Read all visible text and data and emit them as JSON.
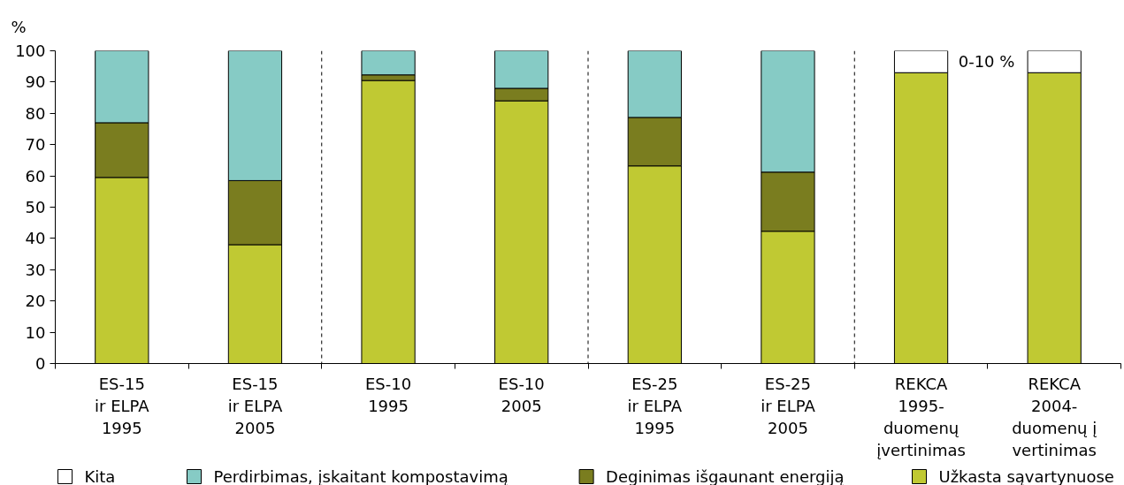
{
  "chart_data": {
    "type": "bar",
    "stacked": true,
    "ylabel": "%",
    "categories": [
      "ES-15\nir ELPA\n1995",
      "ES-15\nir ELPA\n2005",
      "ES-10\n1995",
      "ES-10\n2005",
      "ES-25\nir ELPA\n1995",
      "ES-25\nir ELPA\n2005",
      "REKCA\n1995-\nduomenų\nįvertinimas",
      "REKCA\n2004-\nduomenų į\nvertinimas"
    ],
    "series": [
      {
        "name": "Užkasta sąvartynuose",
        "color": "#c0c933",
        "values": [
          59.5,
          38,
          90.5,
          84,
          63.2,
          42.3,
          93,
          93
        ]
      },
      {
        "name": "Deginimas išgaunant energiją",
        "color": "#7a7d1f",
        "values": [
          17.5,
          20.5,
          1.8,
          4,
          15.5,
          18.9,
          null,
          null
        ]
      },
      {
        "name": "Perdirbimas, įskaitant kompostavimą",
        "color": "#86cbc5",
        "values": [
          23,
          41.5,
          7.7,
          12,
          21.3,
          38.8,
          null,
          null
        ]
      },
      {
        "name": "Kita",
        "color": "#ffffff",
        "values": [
          null,
          null,
          null,
          null,
          null,
          null,
          7,
          7
        ]
      }
    ],
    "ylim": [
      0,
      100
    ],
    "yticks": [
      0,
      10,
      20,
      30,
      40,
      50,
      60,
      70,
      80,
      90,
      100
    ],
    "grid": false,
    "legend": "bottom",
    "annotations": [
      "0-10 %"
    ]
  }
}
